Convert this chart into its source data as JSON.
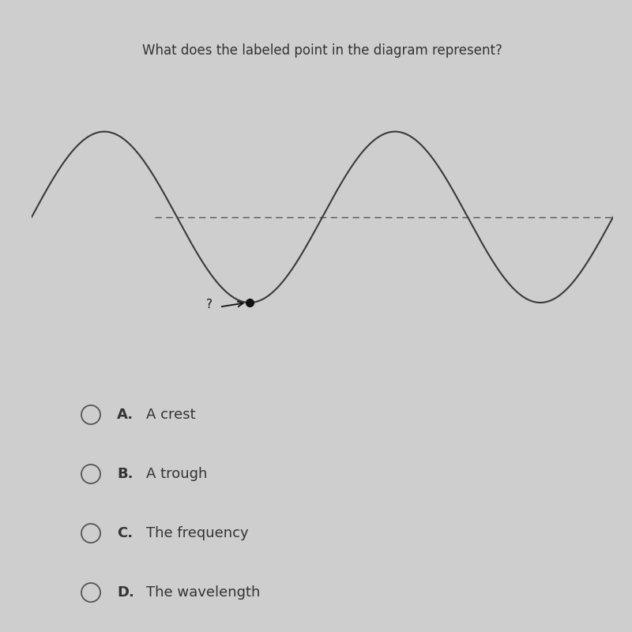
{
  "title": "What does the labeled point in the diagram represent?",
  "title_fontsize": 12,
  "bg_color": "#cecece",
  "wave_color": "#3a3a3a",
  "dashed_color": "#555555",
  "dot_color": "#111111",
  "sep_color": "#aaaaaa",
  "text_color": "#333333",
  "circle_color": "#555555",
  "options": [
    {
      "label": "A.",
      "text": "A crest"
    },
    {
      "label": "B.",
      "text": "A trough"
    },
    {
      "label": "C.",
      "text": "The frequency"
    },
    {
      "label": "D.",
      "text": "The wavelength"
    }
  ],
  "wave_amplitude": 1.0,
  "wave_freq": 1.0
}
